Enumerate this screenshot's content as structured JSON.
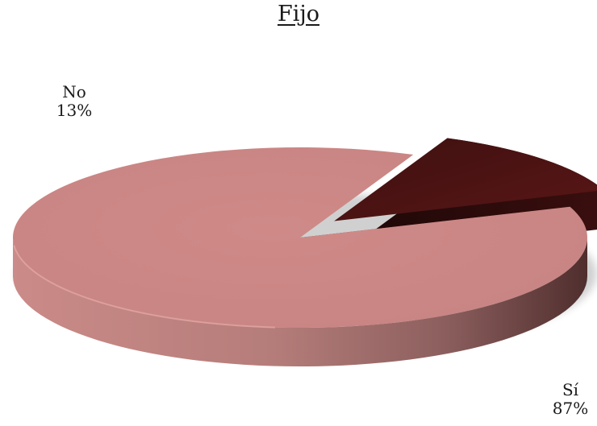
{
  "chart_data": {
    "type": "pie",
    "title": "Fijo",
    "categories": [
      "Sí",
      "No"
    ],
    "values": [
      87,
      13
    ],
    "value_labels": [
      "87%",
      "13%"
    ],
    "style": "3d-exploded",
    "colors": [
      "#cd8986",
      "#4d1414"
    ],
    "legend": "none"
  }
}
